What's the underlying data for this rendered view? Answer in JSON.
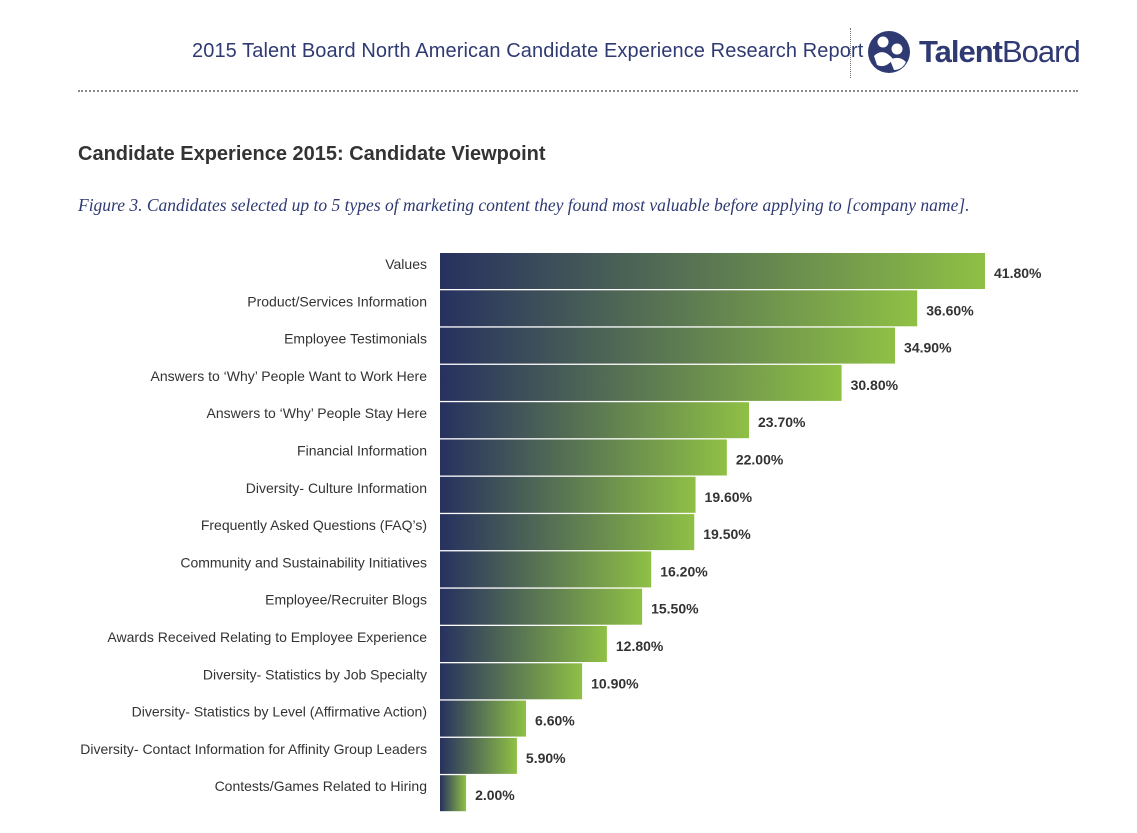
{
  "header": {
    "report_title": "2015 Talent Board North American Candidate Experience Research Report",
    "logo_text_bold": "Talent",
    "logo_text_light": "Board"
  },
  "section_title": "Candidate Experience 2015: Candidate Viewpoint",
  "caption": "Figure 3. Candidates selected up to 5 types of marketing content they found most valuable before applying to [company name].",
  "colors": {
    "brand_navy": "#2f3a73",
    "bar_gradient_start": "#27315f",
    "bar_gradient_end": "#8fc045"
  },
  "chart_data": {
    "type": "bar",
    "orientation": "horizontal",
    "title": "",
    "xlabel": "",
    "ylabel": "",
    "grid": false,
    "categories": [
      "Values",
      "Product/Services Information",
      "Employee Testimonials",
      "Answers to ‘Why’ People Want to Work Here",
      "Answers to ‘Why’ People Stay Here",
      "Financial Information",
      "Diversity- Culture Information",
      "Frequently Asked Questions (FAQ’s)",
      "Community and Sustainability Initiatives",
      "Employee/Recruiter Blogs",
      "Awards Received Relating to Employee Experience",
      "Diversity- Statistics by Job Specialty",
      "Diversity- Statistics by Level (Affirmative Action)",
      "Diversity- Contact Information for Affinity Group Leaders",
      "Contests/Games Related to Hiring"
    ],
    "values": [
      41.8,
      36.6,
      34.9,
      30.8,
      23.7,
      22.0,
      19.6,
      19.5,
      16.2,
      15.5,
      12.8,
      10.9,
      6.6,
      5.9,
      2.0
    ],
    "value_labels": [
      "41.80%",
      "36.60%",
      "34.90%",
      "30.80%",
      "23.70%",
      "22.00%",
      "19.60%",
      "19.50%",
      "16.20%",
      "15.50%",
      "12.80%",
      "10.90%",
      "6.60%",
      "5.90%",
      "2.00%"
    ],
    "xlim": [
      0,
      41.8
    ]
  }
}
